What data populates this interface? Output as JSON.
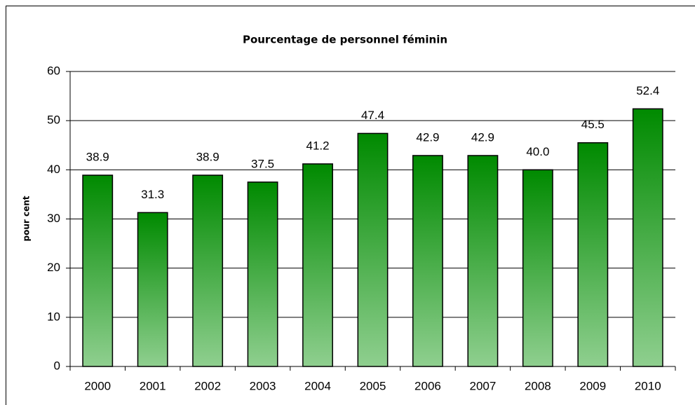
{
  "chart_data": {
    "type": "bar",
    "title": "Pourcentage de personnel féminin",
    "y_label": "pour cent",
    "categories": [
      "2000",
      "2001",
      "2002",
      "2003",
      "2004",
      "2005",
      "2006",
      "2007",
      "2008",
      "2009",
      "2010"
    ],
    "values": [
      38.9,
      31.3,
      38.9,
      37.5,
      41.2,
      47.4,
      42.9,
      42.9,
      40,
      45.5,
      52.4
    ],
    "value_labels": [
      "38.9",
      "31.3",
      "38.9",
      "37.5",
      "41.2",
      "47.4",
      "42.9",
      "42.9",
      "40.0",
      "45.5",
      "52.4"
    ],
    "color": "#008a00",
    "ylim": [
      0,
      60
    ],
    "yticks": [
      0,
      10,
      20,
      30,
      40,
      50,
      60
    ],
    "grid": true
  }
}
